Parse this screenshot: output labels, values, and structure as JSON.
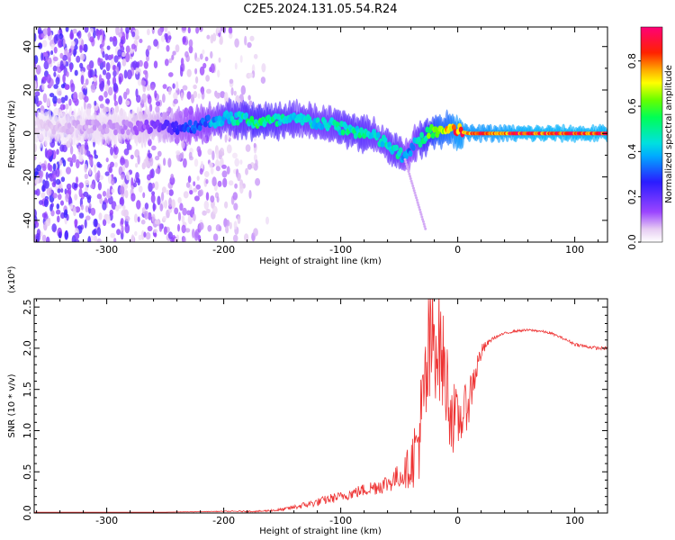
{
  "title": "C2E5.2024.131.05.54.R24",
  "chart_data": [
    {
      "type": "heatmap",
      "xlabel": "Height of straight line (km)",
      "ylabel": "Frequency (Hz)",
      "xlim": [
        -362,
        128
      ],
      "ylim": [
        -50,
        49
      ],
      "x_ticks": [
        -300,
        -200,
        -100,
        0,
        100
      ],
      "x_tick_labels": [
        "-300",
        "-200",
        "-100",
        "0",
        "100"
      ],
      "y_ticks": [
        -40,
        -20,
        0,
        20,
        40
      ],
      "y_tick_labels": [
        "-40",
        "-20",
        "0",
        "20",
        "40"
      ],
      "colorbar": {
        "label": "Normalized spectral amplitude",
        "range": [
          0,
          0.95
        ],
        "ticks": [
          0.0,
          0.2,
          0.4,
          0.6,
          0.8
        ],
        "tick_labels": [
          "0.0",
          "0.2",
          "0.4",
          "0.6",
          "0.8"
        ],
        "colormap": "rainbow (white-violet-blue-cyan-green-yellow-red-magenta)"
      },
      "ridge": {
        "x": [
          -362,
          -320,
          -280,
          -250,
          -230,
          -215,
          -200,
          -185,
          -170,
          -150,
          -130,
          -110,
          -95,
          -80,
          -70,
          -60,
          -52,
          -45,
          -40,
          -35,
          -30,
          -25,
          -20,
          -15,
          -10,
          -5,
          0,
          10,
          30,
          60,
          100,
          128
        ],
        "frequency": [
          3,
          3,
          3,
          3,
          3,
          5,
          7,
          7,
          5,
          6,
          6,
          4,
          2,
          0,
          -2,
          -5,
          -9,
          -11,
          -8,
          -4,
          -2,
          0,
          1,
          1,
          2,
          2,
          1,
          0,
          0,
          0,
          0,
          0
        ],
        "amplitude": [
          0.05,
          0.08,
          0.1,
          0.2,
          0.3,
          0.35,
          0.45,
          0.5,
          0.55,
          0.5,
          0.45,
          0.45,
          0.5,
          0.5,
          0.45,
          0.45,
          0.5,
          0.4,
          0.35,
          0.45,
          0.55,
          0.6,
          0.7,
          0.75,
          0.75,
          0.8,
          0.85,
          0.85,
          0.85,
          0.9,
          0.9,
          0.9
        ]
      }
    },
    {
      "type": "line",
      "xlabel": "Height of straight line (km)",
      "ylabel": "SNR (10 * v/v)",
      "scale_label": "(x10⁴)",
      "xlim": [
        -362,
        128
      ],
      "ylim": [
        0,
        2.6
      ],
      "x_ticks": [
        -300,
        -200,
        -100,
        0,
        100
      ],
      "x_tick_labels": [
        "-300",
        "-200",
        "-100",
        "0",
        "100"
      ],
      "y_ticks": [
        0,
        0.5,
        1.0,
        1.5,
        2.0,
        2.5
      ],
      "y_tick_labels": [
        "0.0",
        "0.5",
        "1.0",
        "1.5",
        "2.0",
        "2.5"
      ],
      "series": [
        {
          "color": "#ee3333",
          "x": [
            -362,
            -300,
            -250,
            -200,
            -170,
            -150,
            -140,
            -130,
            -120,
            -110,
            -100,
            -90,
            -80,
            -70,
            -60,
            -50,
            -45,
            -40,
            -35,
            -30,
            -25,
            -20,
            -15,
            -10,
            -5,
            0,
            5,
            10,
            15,
            20,
            25,
            30,
            40,
            50,
            60,
            70,
            80,
            90,
            100,
            110,
            120,
            128
          ],
          "values": [
            0.01,
            0.01,
            0.01,
            0.02,
            0.02,
            0.04,
            0.07,
            0.1,
            0.13,
            0.17,
            0.2,
            0.24,
            0.28,
            0.32,
            0.36,
            0.45,
            0.5,
            0.6,
            0.8,
            1.2,
            1.8,
            2.2,
            2.0,
            1.6,
            1.2,
            1.1,
            1.2,
            1.4,
            1.7,
            1.95,
            2.05,
            2.12,
            2.18,
            2.21,
            2.22,
            2.21,
            2.18,
            2.12,
            2.05,
            2.02,
            2.0,
            2.0
          ],
          "noise": [
            0,
            0,
            0,
            0.005,
            0.01,
            0.02,
            0.03,
            0.04,
            0.05,
            0.06,
            0.06,
            0.07,
            0.08,
            0.1,
            0.12,
            0.15,
            0.2,
            0.3,
            0.5,
            0.7,
            0.9,
            0.8,
            0.7,
            0.6,
            0.5,
            0.35,
            0.3,
            0.3,
            0.2,
            0.1,
            0.04,
            0.02,
            0.015,
            0.015,
            0.015,
            0.015,
            0.015,
            0.015,
            0.02,
            0.02,
            0.02,
            0.02
          ]
        }
      ]
    }
  ]
}
